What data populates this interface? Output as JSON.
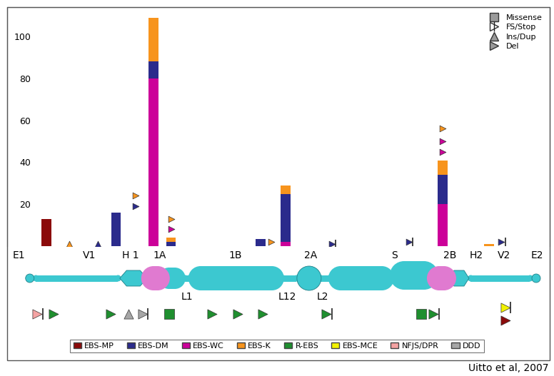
{
  "chart_data": {
    "type": "bar",
    "stacked": true,
    "x": [
      6,
      19,
      26,
      29.3,
      46,
      50.7,
      80,
      88.7
    ],
    "xlim": [
      -1.3,
      100
    ],
    "ylim": [
      0,
      114
    ],
    "yticks": [
      20,
      40,
      60,
      80,
      100
    ],
    "tick_labels": "y",
    "legend": "lower center",
    "source": "Uitto et al, 2007",
    "series": [
      {
        "name": "EBS-MP",
        "color": "#8b0a0a",
        "values": [
          13,
          0,
          0,
          0,
          0,
          0,
          0,
          0
        ]
      },
      {
        "name": "EBS-DM",
        "color": "#2b2b8c",
        "values": [
          0,
          16,
          8,
          2,
          3.5,
          23,
          14,
          0
        ]
      },
      {
        "name": "EBS-WC",
        "color": "#cc0099",
        "values": [
          0,
          0,
          80,
          0,
          0,
          2,
          20,
          0
        ]
      },
      {
        "name": "EBS-K",
        "color": "#f7941d",
        "values": [
          0,
          0,
          21,
          2,
          0,
          4,
          7,
          1
        ]
      },
      {
        "name": "R-EBS",
        "color": "#1f8f2f",
        "values": [
          0,
          0,
          0,
          0,
          0,
          0,
          0,
          0
        ]
      },
      {
        "name": "EBS-MCE",
        "color": "#f2f200",
        "values": [
          0,
          0,
          0,
          0,
          0,
          0,
          0,
          0
        ]
      },
      {
        "name": "NFJS/DPR",
        "color": "#f4a3a3",
        "values": [
          0,
          0,
          0,
          0,
          0,
          0,
          0,
          0
        ]
      },
      {
        "name": "DDD",
        "color": "#a6a6a6",
        "values": [
          0,
          0,
          0,
          0,
          0,
          0,
          0,
          0
        ]
      }
    ],
    "mutation_types": [
      "Missense",
      "FS/Stop",
      "Ins/Dup",
      "Del"
    ],
    "mutations": [
      {
        "x": 10.3,
        "value": 1,
        "kind": "Ins/Dup",
        "series": "EBS-K"
      },
      {
        "x": 15.6,
        "value": 1,
        "kind": "Ins/Dup",
        "series": "EBS-DM"
      },
      {
        "x": 22.7,
        "value": 24,
        "kind": "Del",
        "series": "EBS-K"
      },
      {
        "x": 22.7,
        "value": 19,
        "kind": "Del",
        "series": "EBS-DM"
      },
      {
        "x": 29.3,
        "value": 13,
        "kind": "Del",
        "series": "EBS-K"
      },
      {
        "x": 29.3,
        "value": 8,
        "kind": "Del",
        "series": "EBS-WC"
      },
      {
        "x": 48,
        "value": 2,
        "kind": "Del",
        "series": "EBS-K"
      },
      {
        "x": 59.3,
        "value": 1,
        "kind": "FS/Stop",
        "series": "EBS-DM"
      },
      {
        "x": 73.7,
        "value": 2,
        "kind": "FS/Stop",
        "series": "EBS-DM"
      },
      {
        "x": 80,
        "value": 56,
        "kind": "Del",
        "series": "EBS-K"
      },
      {
        "x": 80,
        "value": 50,
        "kind": "Del",
        "series": "EBS-WC"
      },
      {
        "x": 80,
        "value": 45,
        "kind": "Del",
        "series": "EBS-WC"
      },
      {
        "x": 91,
        "value": 2,
        "kind": "FS/Stop",
        "series": "EBS-DM"
      }
    ],
    "gene_mutations": [
      {
        "x": 4.3,
        "kind": "FS/Stop",
        "series": "NFJS/DPR"
      },
      {
        "x": 7.3,
        "kind": "Del",
        "series": "R-EBS"
      },
      {
        "x": 18,
        "kind": "Del",
        "series": "R-EBS"
      },
      {
        "x": 21.3,
        "kind": "Ins/Dup",
        "series": "DDD"
      },
      {
        "x": 24,
        "kind": "FS/Stop",
        "series": "DDD"
      },
      {
        "x": 29,
        "kind": "Missense",
        "series": "R-EBS"
      },
      {
        "x": 37,
        "kind": "Del",
        "series": "R-EBS"
      },
      {
        "x": 41.7,
        "kind": "Del",
        "series": "R-EBS"
      },
      {
        "x": 46.4,
        "kind": "Del",
        "series": "R-EBS"
      },
      {
        "x": 58.3,
        "kind": "FS/Stop",
        "series": "R-EBS"
      },
      {
        "x": 76,
        "kind": "Missense",
        "series": "R-EBS"
      },
      {
        "x": 78.3,
        "kind": "FS/Stop",
        "series": "R-EBS"
      },
      {
        "x": 91.7,
        "kind": "FS/Stop",
        "series": "EBS-MCE"
      },
      {
        "x": 91.7,
        "kind": "Del",
        "series": "EBS-MP"
      }
    ],
    "domains": [
      "E1",
      "V1",
      "H 1",
      "1A",
      "1B",
      "2A",
      "S",
      "2B",
      "H2",
      "V2",
      "E2"
    ],
    "linkers": [
      "L1",
      "L12",
      "L2"
    ]
  }
}
